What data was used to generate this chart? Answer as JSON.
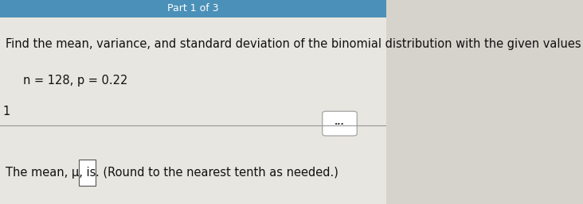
{
  "title_bar_color": "#4a90b8",
  "title_bar_text": "Part 1 of 3",
  "title_bar_text_color": "#ffffff",
  "bg_color": "#d6d3cc",
  "panel_color": "#e8e6e0",
  "main_text": "Find the mean, variance, and standard deviation of the binomial distribution with the given values of n and p.",
  "sub_text": "n = 128, p = 0.22",
  "number_label": "1",
  "divider_color": "#999999",
  "dots_button_color": "#ffffff",
  "dots_button_border": "#aaaaaa",
  "question_text_prefix": "The mean, μ, is ",
  "question_text_suffix": ". (Round to the nearest tenth as needed.)",
  "box_color": "#ffffff",
  "box_border": "#555555",
  "main_text_color": "#111111",
  "main_text_fontsize": 10.5,
  "sub_text_fontsize": 10.5,
  "question_text_fontsize": 10.5
}
